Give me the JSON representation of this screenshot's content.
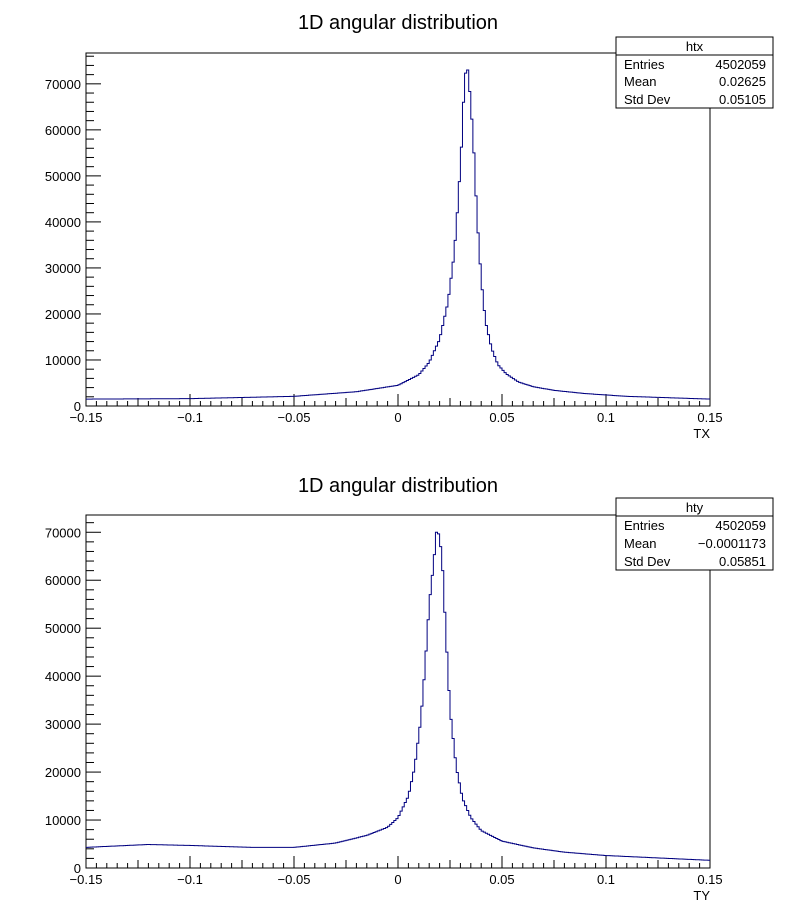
{
  "chart_data": [
    {
      "type": "histogram",
      "title": "1D angular distribution",
      "xlabel": "TX",
      "ylabel": "",
      "xlim": [
        -0.15,
        0.15
      ],
      "ylim": [
        0,
        76700
      ],
      "xticks": [
        "−0.15",
        "−0.1",
        "−0.05",
        "0",
        "0.05",
        "0.1",
        "0.15"
      ],
      "yticks": [
        "0",
        "10000",
        "20000",
        "30000",
        "40000",
        "50000",
        "60000",
        "70000"
      ],
      "line_color": "#000080",
      "x": [
        -0.15,
        -0.1,
        -0.05,
        -0.02,
        0.0,
        0.01,
        0.015,
        0.02,
        0.024,
        0.027,
        0.029,
        0.031,
        0.032,
        0.0335,
        0.035,
        0.0365,
        0.038,
        0.04,
        0.042,
        0.045,
        0.048,
        0.052,
        0.058,
        0.065,
        0.075,
        0.09,
        0.11,
        0.13,
        0.15
      ],
      "y": [
        1500,
        1600,
        2100,
        3100,
        4500,
        6800,
        9500,
        14500,
        22500,
        33000,
        45000,
        60000,
        72000,
        73000,
        66000,
        55000,
        41000,
        27500,
        18500,
        12500,
        9000,
        7000,
        5200,
        4200,
        3400,
        2700,
        2100,
        1800,
        1500
      ],
      "stats": {
        "name": "htx",
        "rows": [
          {
            "label": "Entries",
            "value": "4502059"
          },
          {
            "label": "Mean",
            "value": "0.02625"
          },
          {
            "label": "Std Dev",
            "value": "0.05105"
          }
        ]
      }
    },
    {
      "type": "histogram",
      "title": "1D angular distribution",
      "xlabel": "TY",
      "ylabel": "",
      "xlim": [
        -0.15,
        0.15
      ],
      "ylim": [
        0,
        73600
      ],
      "xticks": [
        "−0.15",
        "−0.1",
        "−0.05",
        "0",
        "0.05",
        "0.1",
        "0.15"
      ],
      "yticks": [
        "0",
        "10000",
        "20000",
        "30000",
        "40000",
        "50000",
        "60000",
        "70000"
      ],
      "line_color": "#000080",
      "x": [
        -0.15,
        -0.12,
        -0.1,
        -0.07,
        -0.05,
        -0.03,
        -0.015,
        -0.005,
        0.0,
        0.005,
        0.008,
        0.011,
        0.013,
        0.015,
        0.017,
        0.0185,
        0.02,
        0.0215,
        0.023,
        0.025,
        0.028,
        0.031,
        0.035,
        0.04,
        0.05,
        0.065,
        0.08,
        0.1,
        0.125,
        0.15
      ],
      "y": [
        4300,
        4900,
        4700,
        4300,
        4300,
        5200,
        6800,
        8500,
        10500,
        15000,
        21000,
        31000,
        42000,
        55000,
        63000,
        70000,
        69500,
        62000,
        49000,
        33000,
        21000,
        14500,
        10500,
        7800,
        5600,
        4200,
        3300,
        2600,
        2100,
        1600
      ],
      "stats": {
        "name": "hty",
        "rows": [
          {
            "label": "Entries",
            "value": "4502059"
          },
          {
            "label": "Mean",
            "value": "−0.0001173"
          },
          {
            "label": "Std Dev",
            "value": "0.05851"
          }
        ]
      }
    }
  ]
}
